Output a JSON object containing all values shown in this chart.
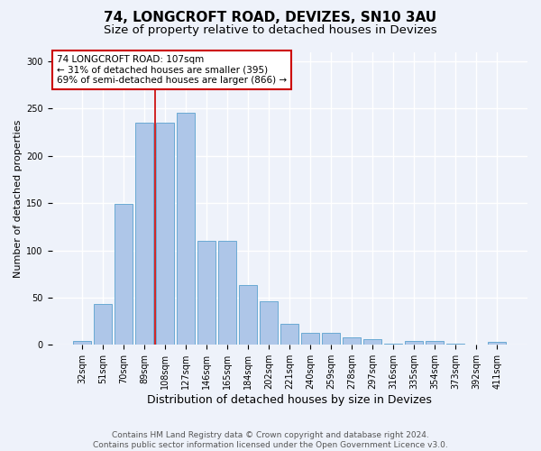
{
  "title1": "74, LONGCROFT ROAD, DEVIZES, SN10 3AU",
  "title2": "Size of property relative to detached houses in Devizes",
  "xlabel": "Distribution of detached houses by size in Devizes",
  "ylabel": "Number of detached properties",
  "categories": [
    "32sqm",
    "51sqm",
    "70sqm",
    "89sqm",
    "108sqm",
    "127sqm",
    "146sqm",
    "165sqm",
    "184sqm",
    "202sqm",
    "221sqm",
    "240sqm",
    "259sqm",
    "278sqm",
    "297sqm",
    "316sqm",
    "335sqm",
    "354sqm",
    "373sqm",
    "392sqm",
    "411sqm"
  ],
  "values": [
    4,
    43,
    149,
    235,
    235,
    246,
    110,
    110,
    63,
    46,
    22,
    13,
    13,
    8,
    6,
    1,
    4,
    4,
    1,
    0,
    3
  ],
  "bar_color": "#aec6e8",
  "bar_edge_color": "#6aaad4",
  "vline_color": "#cc0000",
  "annotation_lines": [
    "74 LONGCROFT ROAD: 107sqm",
    "← 31% of detached houses are smaller (395)",
    "69% of semi-detached houses are larger (866) →"
  ],
  "annotation_box_color": "#cc0000",
  "ylim": [
    0,
    310
  ],
  "yticks": [
    0,
    50,
    100,
    150,
    200,
    250,
    300
  ],
  "footer": "Contains HM Land Registry data © Crown copyright and database right 2024.\nContains public sector information licensed under the Open Government Licence v3.0.",
  "bg_color": "#eef2fa",
  "plot_bg_color": "#eef2fa",
  "grid_color": "#ffffff",
  "title1_fontsize": 11,
  "title2_fontsize": 9.5,
  "xlabel_fontsize": 9,
  "ylabel_fontsize": 8,
  "tick_fontsize": 7,
  "footer_fontsize": 6.5,
  "annot_fontsize": 7.5
}
